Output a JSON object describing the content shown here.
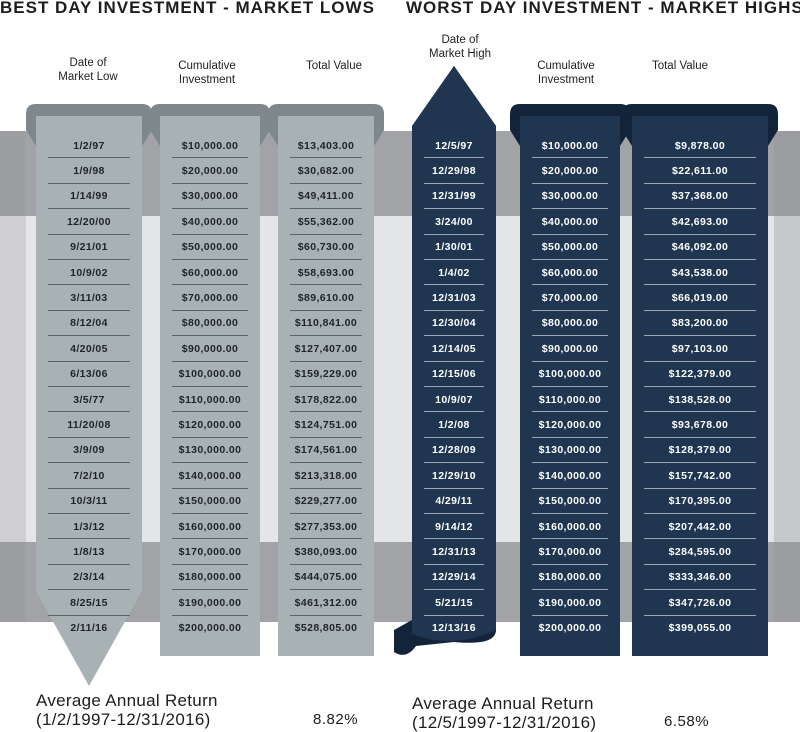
{
  "left": {
    "title": "BEST DAY INVESTMENT - MARKET LOWS",
    "headers": [
      "Date of\nMarket Low",
      "Cumulative\nInvestment",
      "Total Value"
    ],
    "rows": [
      [
        "1/2/97",
        "$10,000.00",
        "$13,403.00"
      ],
      [
        "1/9/98",
        "$20,000.00",
        "$30,682.00"
      ],
      [
        "1/14/99",
        "$30,000.00",
        "$49,411.00"
      ],
      [
        "12/20/00",
        "$40,000.00",
        "$55,362.00"
      ],
      [
        "9/21/01",
        "$50,000.00",
        "$60,730.00"
      ],
      [
        "10/9/02",
        "$60,000.00",
        "$58,693.00"
      ],
      [
        "3/11/03",
        "$70,000.00",
        "$89,610.00"
      ],
      [
        "8/12/04",
        "$80,000.00",
        "$110,841.00"
      ],
      [
        "4/20/05",
        "$90,000.00",
        "$127,407.00"
      ],
      [
        "6/13/06",
        "$100,000.00",
        "$159,229.00"
      ],
      [
        "3/5/77",
        "$110,000.00",
        "$178,822.00"
      ],
      [
        "11/20/08",
        "$120,000.00",
        "$124,751.00"
      ],
      [
        "3/9/09",
        "$130,000.00",
        "$174,561.00"
      ],
      [
        "7/2/10",
        "$140,000.00",
        "$213,318.00"
      ],
      [
        "10/3/11",
        "$150,000.00",
        "$229,277.00"
      ],
      [
        "1/3/12",
        "$160,000.00",
        "$277,353.00"
      ],
      [
        "1/8/13",
        "$170,000.00",
        "$380,093.00"
      ],
      [
        "2/3/14",
        "$180,000.00",
        "$444,075.00"
      ],
      [
        "8/25/15",
        "$190,000.00",
        "$461,312.00"
      ],
      [
        "2/11/16",
        "$200,000.00",
        "$528,805.00"
      ]
    ],
    "avg_label_1": "Average Annual Return",
    "avg_label_2": "(1/2/1997-12/31/2016)",
    "avg_value": "8.82%"
  },
  "right": {
    "title": "WORST DAY INVESTMENT - MARKET HIGHS",
    "headers": [
      "Date of\nMarket High",
      "Cumulative\nInvestment",
      "Total Value"
    ],
    "rows": [
      [
        "12/5/97",
        "$10,000.00",
        "$9,878.00"
      ],
      [
        "12/29/98",
        "$20,000.00",
        "$22,611.00"
      ],
      [
        "12/31/99",
        "$30,000.00",
        "$37,368.00"
      ],
      [
        "3/24/00",
        "$40,000.00",
        "$42,693.00"
      ],
      [
        "1/30/01",
        "$50,000.00",
        "$46,092.00"
      ],
      [
        "1/4/02",
        "$60,000.00",
        "$43,538.00"
      ],
      [
        "12/31/03",
        "$70,000.00",
        "$66,019.00"
      ],
      [
        "12/30/04",
        "$80,000.00",
        "$83,200.00"
      ],
      [
        "12/14/05",
        "$90,000.00",
        "$97,103.00"
      ],
      [
        "12/15/06",
        "$100,000.00",
        "$122,379.00"
      ],
      [
        "10/9/07",
        "$110,000.00",
        "$138,528.00"
      ],
      [
        "1/2/08",
        "$120,000.00",
        "$93,678.00"
      ],
      [
        "12/28/09",
        "$130,000.00",
        "$128,379.00"
      ],
      [
        "12/29/10",
        "$140,000.00",
        "$157,742.00"
      ],
      [
        "4/29/11",
        "$150,000.00",
        "$170,395.00"
      ],
      [
        "9/14/12",
        "$160,000.00",
        "$207,442.00"
      ],
      [
        "12/31/13",
        "$170,000.00",
        "$284,595.00"
      ],
      [
        "12/29/14",
        "$180,000.00",
        "$333,346.00"
      ],
      [
        "5/21/15",
        "$190,000.00",
        "$347,726.00"
      ],
      [
        "12/13/16",
        "$200,000.00",
        "$399,055.00"
      ]
    ],
    "avg_label_1": "Average Annual Return",
    "avg_label_2": "(12/5/1997-12/31/2016)",
    "avg_value": "6.58%"
  },
  "colors": {
    "gray_ribbon": "#a8b2b5",
    "gray_ribbon_dark": "#7e888c",
    "navy_ribbon": "#1f3550",
    "navy_ribbon_dark": "#12233a",
    "band_dark": "#a1a3a6",
    "band_light": "#e4e5e6"
  }
}
